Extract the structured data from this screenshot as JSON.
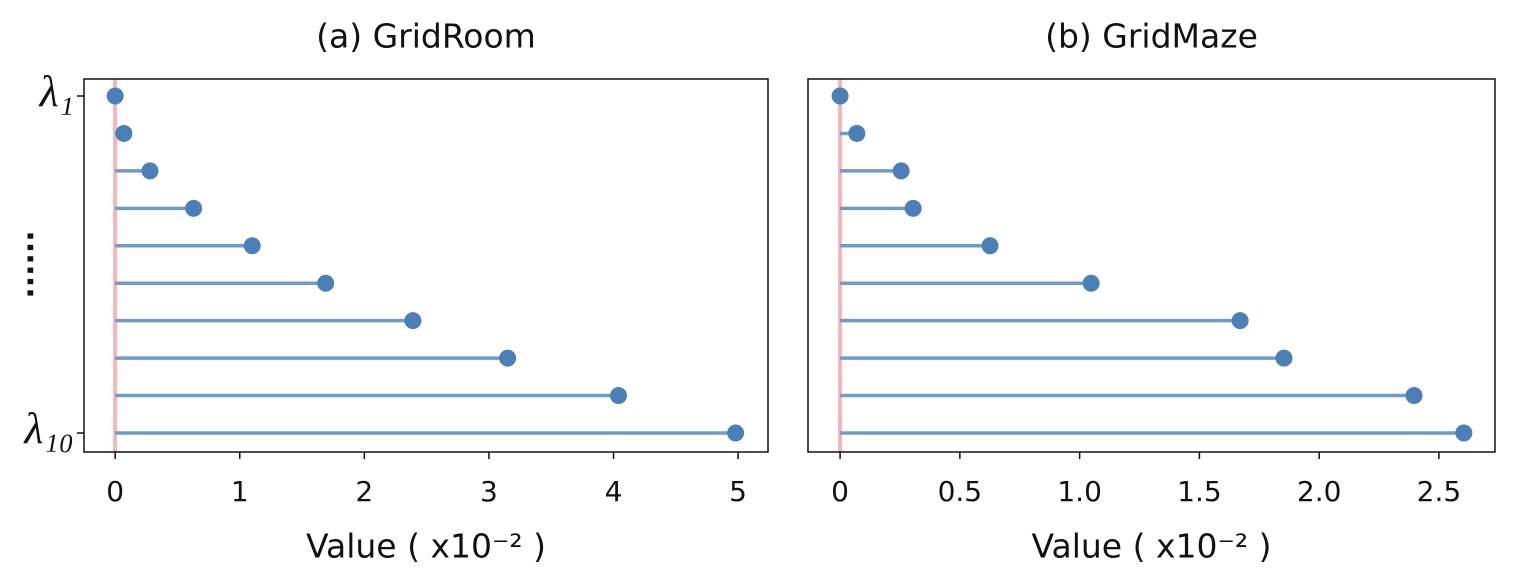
{
  "chart_data": [
    {
      "type": "lollipop",
      "title": "(a) GridRoom",
      "xlabel": "Value ( x10⁻² )",
      "categories": [
        "λ₁",
        null,
        null,
        null,
        null,
        null,
        null,
        null,
        null,
        "λ₁₀"
      ],
      "values": [
        0,
        0.07,
        0.28,
        0.63,
        1.1,
        1.69,
        2.39,
        3.15,
        4.04,
        4.98
      ],
      "y_annotation": "......",
      "xlim": [
        -0.25,
        5.24
      ],
      "xticks": [
        0,
        1,
        2,
        3,
        4,
        5
      ],
      "color": "#4a7fb8",
      "stem_color": "#6f9bc8",
      "refline": 0,
      "refline_color": "#f4b6b6"
    },
    {
      "type": "lollipop",
      "title": "(b) GridMaze",
      "xlabel": "Value ( x10⁻² )",
      "categories": [
        null,
        null,
        null,
        null,
        null,
        null,
        null,
        null,
        null,
        null
      ],
      "values": [
        0,
        0.07,
        0.255,
        0.305,
        0.626,
        1.048,
        1.67,
        1.853,
        2.396,
        2.604
      ],
      "xlim": [
        -0.134,
        2.734
      ],
      "xticks": [
        0,
        0.5,
        {
          "value": 1,
          "label": "1.0"
        },
        1.5,
        {
          "value": 2,
          "label": "2.0"
        },
        2.5
      ],
      "color": "#4a7fb8",
      "stem_color": "#6f9bc8",
      "refline": 0,
      "refline_color": "#f4b6b6"
    }
  ]
}
